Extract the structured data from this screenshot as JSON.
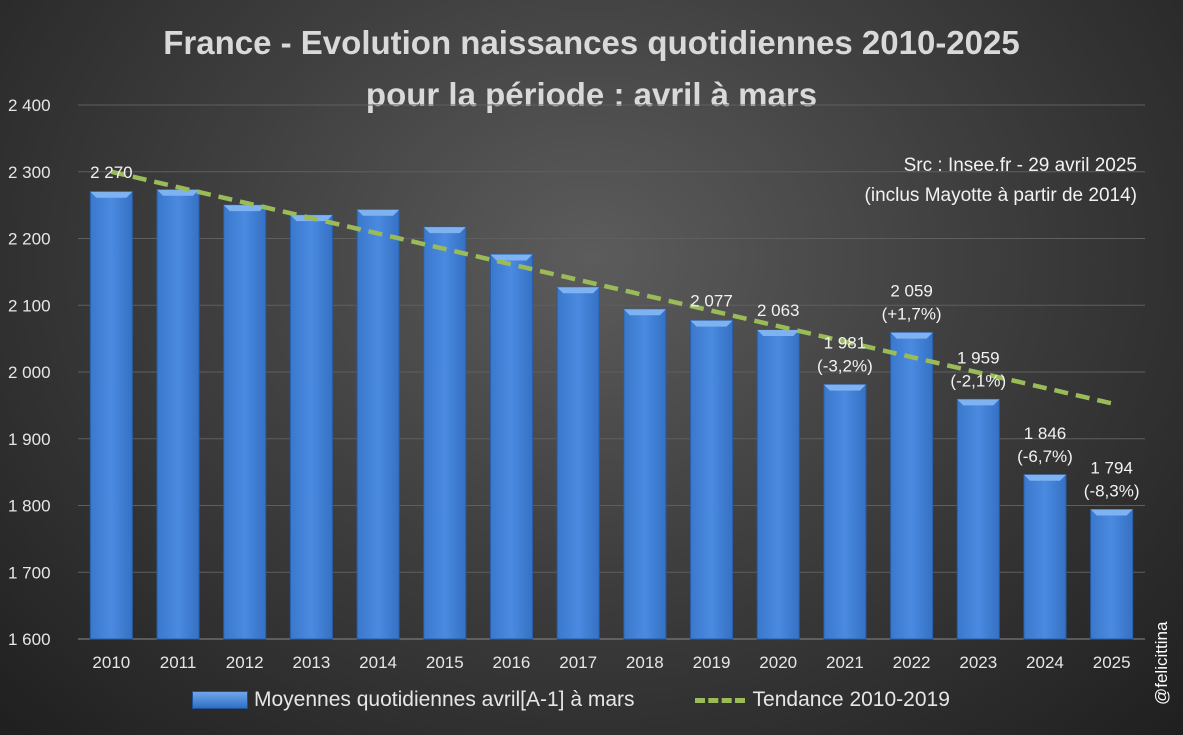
{
  "chart_data": {
    "type": "bar",
    "title": [
      "France - Evolution naissances quotidiennes 2010-2025",
      "pour la période : avril à mars"
    ],
    "source_note": [
      "Src : Insee.fr - 29 avril 2025",
      "(inclus Mayotte à partir de 2014)"
    ],
    "categories": [
      "2010",
      "2011",
      "2012",
      "2013",
      "2014",
      "2015",
      "2016",
      "2017",
      "2018",
      "2019",
      "2020",
      "2021",
      "2022",
      "2023",
      "2024",
      "2025"
    ],
    "series": [
      {
        "name": "Moyennes quotidiennes avril[A-1] à mars",
        "type": "bar",
        "color": "#3f80d6",
        "values": [
          2270,
          2273,
          2250,
          2235,
          2243,
          2217,
          2176,
          2127,
          2094,
          2077,
          2063,
          1981,
          2059,
          1959,
          1846,
          1794
        ]
      },
      {
        "name": "Tendance 2010-2019",
        "type": "line",
        "style": "dashed",
        "color": "#9bbb59",
        "start": 2300,
        "end": 1953
      }
    ],
    "data_labels": [
      {
        "category": "2010",
        "lines": [
          "2 270"
        ]
      },
      {
        "category": "2019",
        "lines": [
          "2 077"
        ]
      },
      {
        "category": "2020",
        "lines": [
          "2 063"
        ]
      },
      {
        "category": "2021",
        "lines": [
          "1 981",
          "(-3,2%)"
        ]
      },
      {
        "category": "2022",
        "lines": [
          "2 059",
          "(+1,7%)"
        ]
      },
      {
        "category": "2023",
        "lines": [
          "1 959",
          "(-2,1%)"
        ]
      },
      {
        "category": "2024",
        "lines": [
          "1 846",
          "(-6,7%)"
        ]
      },
      {
        "category": "2025",
        "lines": [
          "1 794",
          "(-8,3%)"
        ]
      }
    ],
    "ylim": [
      1600,
      2400
    ],
    "yticks": [
      1600,
      1700,
      1800,
      1900,
      2000,
      2100,
      2200,
      2300,
      2400
    ],
    "ytick_labels": [
      "1 600",
      "1 700",
      "1 800",
      "1 900",
      "2 000",
      "2 100",
      "2 200",
      "2 300",
      "2 400"
    ],
    "grid": true,
    "legend_position": "bottom"
  },
  "watermark": "@felicittina"
}
